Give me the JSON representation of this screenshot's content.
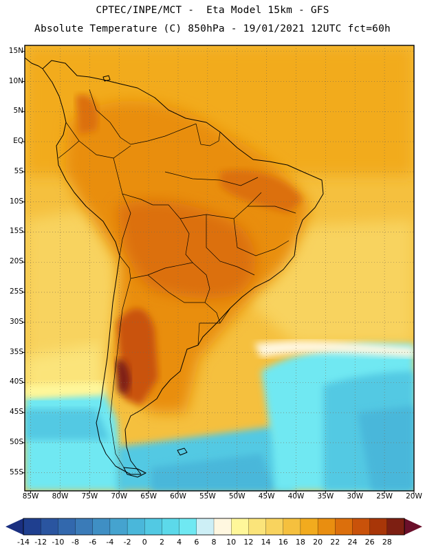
{
  "header": {
    "line1": "CPTEC/INPE/MCT -  Eta Model 15km - GFS",
    "line2": "Absolute Temperature (C) 850hPa - 19/01/2021 12UTC fct=60h"
  },
  "map": {
    "region": "South America",
    "variable": "Absolute Temperature",
    "units": "C",
    "level": "850hPa",
    "lat_range": [
      -58,
      16
    ],
    "lon_range": [
      -86,
      -20
    ],
    "lat_labels": [
      "15N",
      "10N",
      "5N",
      "EQ",
      "5S",
      "10S",
      "15S",
      "20S",
      "25S",
      "30S",
      "35S",
      "40S",
      "45S",
      "50S",
      "55S"
    ],
    "lon_labels": [
      "85W",
      "80W",
      "75W",
      "70W",
      "65W",
      "60W",
      "55W",
      "50W",
      "45W",
      "40W",
      "35W",
      "30W",
      "25W",
      "20W"
    ]
  },
  "colorbar": {
    "labels": [
      "-14",
      "-12",
      "-10",
      "-8",
      "-6",
      "-4",
      "-2",
      "0",
      "2",
      "4",
      "6",
      "8",
      "10",
      "12",
      "14",
      "16",
      "18",
      "20",
      "22",
      "24",
      "26",
      "28"
    ],
    "colors": [
      "#1f3f8f",
      "#2a55a0",
      "#3268ad",
      "#3a7bb8",
      "#3f8fc4",
      "#45a3cf",
      "#4ab7da",
      "#52c9e3",
      "#5cd9ea",
      "#6fe8f2",
      "#cdeff6",
      "#fff7e0",
      "#fff79a",
      "#fbe47a",
      "#f8d35e",
      "#f5c03e",
      "#f2ab1e",
      "#e98e10",
      "#dc6f0c",
      "#c9520a",
      "#a83608",
      "#7d1f12"
    ],
    "under_color": "#1a2f80",
    "over_color": "#6a0f2a"
  }
}
